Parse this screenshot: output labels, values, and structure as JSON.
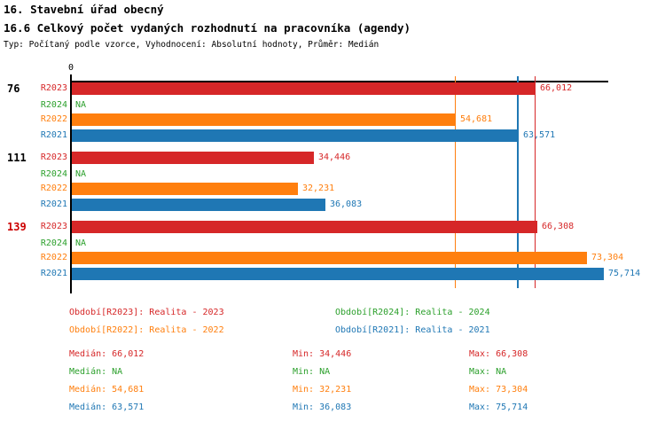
{
  "header": {
    "title_line1": "16. Stavební úřad obecný",
    "title_line2": "16.6 Celkový počet vydaných rozhodnutí na pracovníka (agendy)",
    "subtitle": "Typ: Počítaný podle vzorce, Vyhodnocení: Absolutní hodnoty, Průměr: Medián"
  },
  "chart_data": {
    "type": "bar",
    "orientation": "horizontal",
    "x_axis": {
      "zero_label": "0",
      "min": 0,
      "implied_max": 76500,
      "grid": "median-reference-lines"
    },
    "series_colors": {
      "R2023": "#d62728",
      "R2024": "#2ca02c",
      "R2022": "#ff7f0e",
      "R2021": "#1f77b4"
    },
    "median_lines": [
      {
        "series": "R2023",
        "value": 66012
      },
      {
        "series": "R2022",
        "value": 54681
      },
      {
        "series": "R2021",
        "value": 63571
      }
    ],
    "groups": [
      {
        "label": "76",
        "label_color": "#000000",
        "bars": [
          {
            "series": "R2023",
            "value": 66012,
            "display": "66,012"
          },
          {
            "series": "R2024",
            "value": null,
            "display": "NA"
          },
          {
            "series": "R2022",
            "value": 54681,
            "display": "54,681"
          },
          {
            "series": "R2021",
            "value": 63571,
            "display": "63,571"
          }
        ]
      },
      {
        "label": "111",
        "label_color": "#000000",
        "bars": [
          {
            "series": "R2023",
            "value": 34446,
            "display": "34,446"
          },
          {
            "series": "R2024",
            "value": null,
            "display": "NA"
          },
          {
            "series": "R2022",
            "value": 32231,
            "display": "32,231"
          },
          {
            "series": "R2021",
            "value": 36083,
            "display": "36,083"
          }
        ]
      },
      {
        "label": "139",
        "label_color": "#cc0000",
        "bars": [
          {
            "series": "R2023",
            "value": 66308,
            "display": "66,308"
          },
          {
            "series": "R2024",
            "value": null,
            "display": "NA"
          },
          {
            "series": "R2022",
            "value": 73304,
            "display": "73,304"
          },
          {
            "series": "R2021",
            "value": 75714,
            "display": "75,714"
          }
        ]
      }
    ]
  },
  "legend": {
    "items": [
      {
        "label": "Období[R2023]: Realita - 2023",
        "color": "#d62728"
      },
      {
        "label": "Období[R2024]: Realita - 2024",
        "color": "#2ca02c"
      },
      {
        "label": "Období[R2022]: Realita - 2022",
        "color": "#ff7f0e"
      },
      {
        "label": "Období[R2021]: Realita - 2021",
        "color": "#1f77b4"
      }
    ]
  },
  "stats": {
    "rows": [
      {
        "color": "#d62728",
        "median": "Medián: 66,012",
        "min": "Min: 34,446",
        "max": "Max: 66,308"
      },
      {
        "color": "#2ca02c",
        "median": "Medián: NA",
        "min": "Min: NA",
        "max": "Max: NA"
      },
      {
        "color": "#ff7f0e",
        "median": "Medián: 54,681",
        "min": "Min: 32,231",
        "max": "Max: 73,304"
      },
      {
        "color": "#1f77b4",
        "median": "Medián: 63,571",
        "min": "Min: 36,083",
        "max": "Max: 75,714"
      }
    ]
  }
}
